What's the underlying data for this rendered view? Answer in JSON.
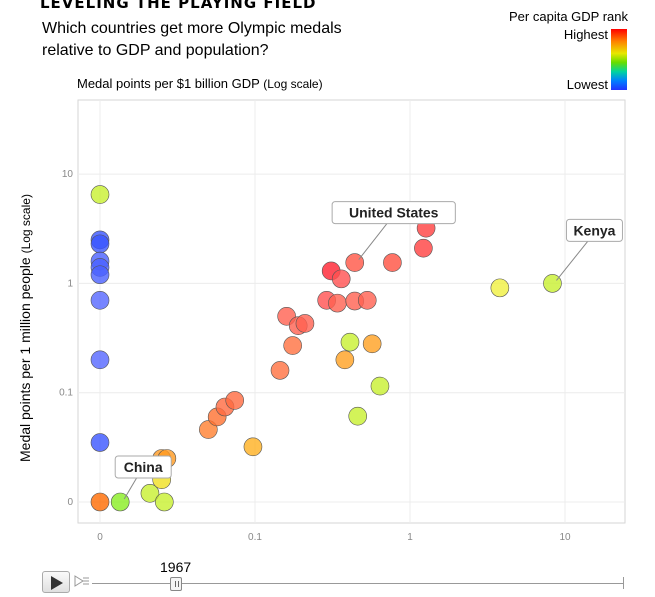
{
  "header": {
    "kicker": "LEVELING THE PLAYING FIELD",
    "headline": "Which countries get more Olympic medals relative to GDP and population?"
  },
  "legend": {
    "title": "Per capita GDP rank",
    "high_label": "Highest",
    "low_label": "Lowest",
    "gradient_colors": [
      "#ff0000",
      "#ff8000",
      "#e8e800",
      "#66dd00",
      "#00d4a0",
      "#0080ff",
      "#2233ff"
    ]
  },
  "controls": {
    "year": "1967",
    "play_icon": "play-icon",
    "speed_icon": "speed-icon",
    "slider_position_fraction": 0.147
  },
  "chart_data": {
    "type": "scatter",
    "title": "",
    "xlabel": "Medal points per $1 billion GDP",
    "xlabel_note": "(Log scale)",
    "ylabel": "Medal points per 1 million people",
    "ylabel_note": "(Log scale)",
    "x_scale": "log",
    "y_scale": "log",
    "xlim": [
      0.01,
      20
    ],
    "ylim": [
      0.01,
      40
    ],
    "x_ticks": [
      {
        "value": 0.01,
        "label": "0"
      },
      {
        "value": 0.1,
        "label": "0.1"
      },
      {
        "value": 1,
        "label": "1"
      },
      {
        "value": 10,
        "label": "10"
      }
    ],
    "y_ticks": [
      {
        "value": 0.01,
        "label": "0"
      },
      {
        "value": 0.1,
        "label": "0.1"
      },
      {
        "value": 1,
        "label": "1"
      },
      {
        "value": 10,
        "label": "10"
      }
    ],
    "grid": true,
    "legend_position": "top-right",
    "points": [
      {
        "x": 0.01,
        "y": 6.5,
        "color": "#c8f030"
      },
      {
        "x": 0.01,
        "y": 2.5,
        "color": "#3a55ff"
      },
      {
        "x": 0.01,
        "y": 2.3,
        "color": "#3a55ff"
      },
      {
        "x": 0.01,
        "y": 1.6,
        "color": "#4a60ff"
      },
      {
        "x": 0.01,
        "y": 1.4,
        "color": "#4a60ff"
      },
      {
        "x": 0.01,
        "y": 1.2,
        "color": "#4a60ff"
      },
      {
        "x": 0.01,
        "y": 0.7,
        "color": "#5566ff"
      },
      {
        "x": 0.01,
        "y": 0.2,
        "color": "#5566ff"
      },
      {
        "x": 0.01,
        "y": 0.035,
        "color": "#3a55ff"
      },
      {
        "x": 0.01,
        "y": 0.01,
        "color": "#ff6a00"
      },
      {
        "x": 0.0135,
        "y": 0.01,
        "color": "#88ee22",
        "label": "China"
      },
      {
        "x": 0.021,
        "y": 0.012,
        "color": "#c8f030"
      },
      {
        "x": 0.026,
        "y": 0.01,
        "color": "#c8f030"
      },
      {
        "x": 0.025,
        "y": 0.016,
        "color": "#f0e020"
      },
      {
        "x": 0.025,
        "y": 0.025,
        "color": "#ff9a20"
      },
      {
        "x": 0.027,
        "y": 0.025,
        "color": "#ff9a20"
      },
      {
        "x": 0.05,
        "y": 0.046,
        "color": "#ff8030"
      },
      {
        "x": 0.057,
        "y": 0.06,
        "color": "#ff7030"
      },
      {
        "x": 0.064,
        "y": 0.074,
        "color": "#ff6a40"
      },
      {
        "x": 0.074,
        "y": 0.085,
        "color": "#ff6a40"
      },
      {
        "x": 0.097,
        "y": 0.032,
        "color": "#ffb020"
      },
      {
        "x": 0.145,
        "y": 0.16,
        "color": "#ff7040"
      },
      {
        "x": 0.16,
        "y": 0.5,
        "color": "#ff6050"
      },
      {
        "x": 0.175,
        "y": 0.27,
        "color": "#ff7040"
      },
      {
        "x": 0.19,
        "y": 0.41,
        "color": "#ff6050"
      },
      {
        "x": 0.21,
        "y": 0.43,
        "color": "#ff6050"
      },
      {
        "x": 0.29,
        "y": 0.7,
        "color": "#ff5050"
      },
      {
        "x": 0.31,
        "y": 1.3,
        "color": "#ff2030"
      },
      {
        "x": 0.34,
        "y": 0.66,
        "color": "#ff6050"
      },
      {
        "x": 0.36,
        "y": 1.1,
        "color": "#ff5050"
      },
      {
        "x": 0.38,
        "y": 0.2,
        "color": "#ffa020"
      },
      {
        "x": 0.41,
        "y": 0.29,
        "color": "#c8f030"
      },
      {
        "x": 0.44,
        "y": 1.55,
        "color": "#ff5545",
        "label": "United States"
      },
      {
        "x": 0.44,
        "y": 0.69,
        "color": "#ff6050"
      },
      {
        "x": 0.46,
        "y": 0.061,
        "color": "#c8f030"
      },
      {
        "x": 0.53,
        "y": 0.7,
        "color": "#ff6050"
      },
      {
        "x": 0.57,
        "y": 0.28,
        "color": "#ffa020"
      },
      {
        "x": 0.64,
        "y": 0.115,
        "color": "#c8f030"
      },
      {
        "x": 0.77,
        "y": 1.55,
        "color": "#ff5040"
      },
      {
        "x": 1.22,
        "y": 2.1,
        "color": "#ff4040"
      },
      {
        "x": 1.27,
        "y": 3.2,
        "color": "#ff4040"
      },
      {
        "x": 3.8,
        "y": 0.91,
        "color": "#f0f040"
      },
      {
        "x": 8.3,
        "y": 1.0,
        "color": "#c8f030",
        "label": "Kenya"
      }
    ]
  }
}
